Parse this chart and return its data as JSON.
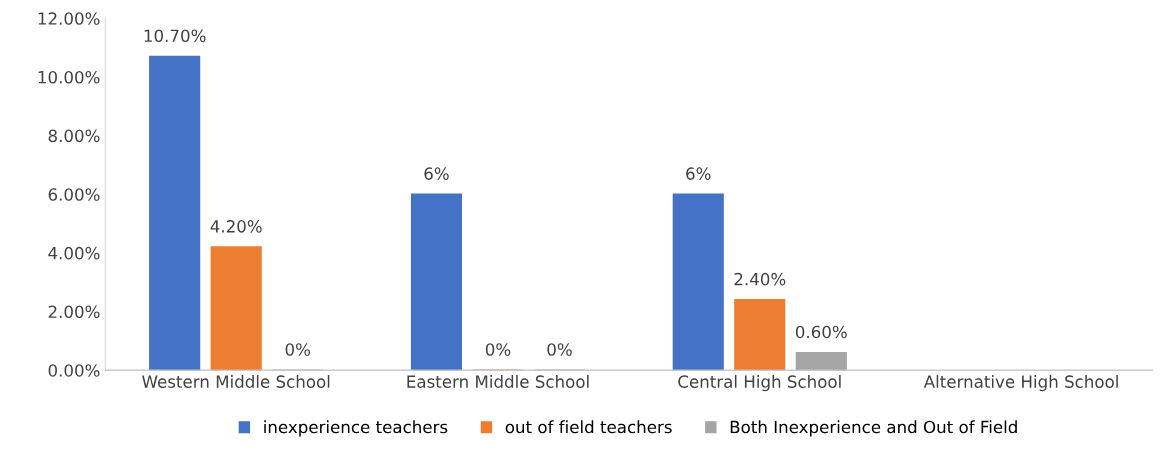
{
  "chart_data": {
    "type": "bar",
    "categories": [
      "Western Middle School",
      "Eastern Middle School",
      "Central High School",
      "Alternative High School"
    ],
    "series": [
      {
        "name": "inexperience teachers",
        "color": "#4472c4",
        "values": [
          10.7,
          6,
          6,
          null
        ],
        "value_labels": [
          "10.70%",
          "6%",
          "6%",
          null
        ]
      },
      {
        "name": "out of field teachers",
        "color": "#ed7d31",
        "values": [
          4.2,
          0,
          2.4,
          null
        ],
        "value_labels": [
          "4.20%",
          "0%",
          "2.40%",
          null
        ]
      },
      {
        "name": "Both Inexperience and Out of Field",
        "color": "#a5a5a5",
        "values": [
          0,
          0,
          0.6,
          null
        ],
        "value_labels": [
          "0%",
          "0%",
          "0.60%",
          null
        ]
      }
    ],
    "ylim": [
      0,
      12
    ],
    "yticks": [
      {
        "value": 0,
        "label": "0.00%"
      },
      {
        "value": 2,
        "label": "2.00%"
      },
      {
        "value": 4,
        "label": "4.00%"
      },
      {
        "value": 6,
        "label": "6.00%"
      },
      {
        "value": 8,
        "label": "8.00%"
      },
      {
        "value": 10,
        "label": "10.00%"
      },
      {
        "value": 12,
        "label": "12.00%"
      }
    ],
    "grid": false,
    "legend": "bottom"
  }
}
